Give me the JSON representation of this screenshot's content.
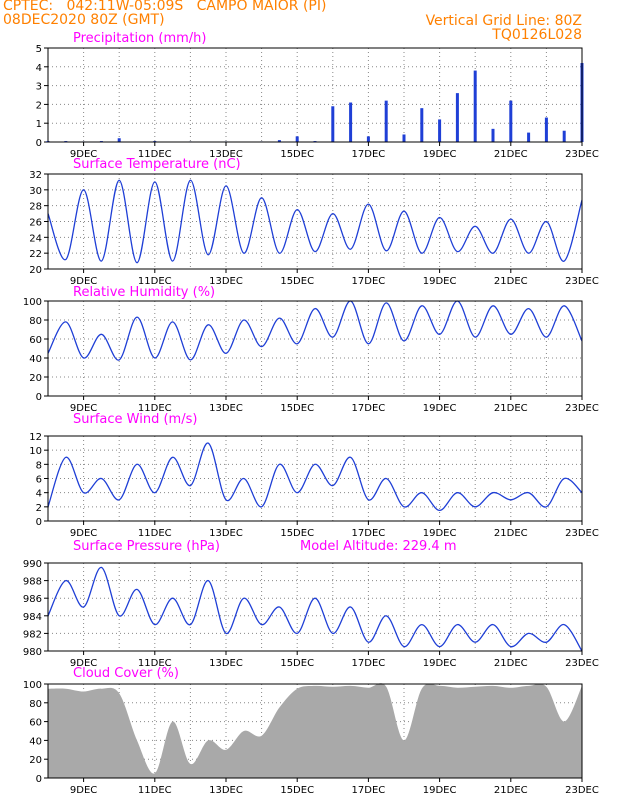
{
  "header": {
    "line1_left": "CPTEC:   042:11W-05:09S   CAMPO MAIOR (PI)",
    "line2_left": "08DEC2020 80Z (GMT)",
    "line1_right": "Vertical Grid Line: 80Z",
    "line2_right": "TQ0126L028"
  },
  "colors": {
    "header": "#ff8000",
    "title": "#ff00ff",
    "series": "#1f3fd6",
    "cloud": "#a9a9a9",
    "grid": "#888888"
  },
  "x_ticks": [
    "9DEC",
    "11DEC",
    "13DEC",
    "15DEC",
    "17DEC",
    "19DEC",
    "21DEC",
    "23DEC"
  ],
  "chart_data": [
    {
      "id": "precip",
      "type": "bar",
      "title": "Precipitation (mm/h)",
      "ylim": [
        0,
        5
      ],
      "yticks": [
        0,
        1,
        2,
        3,
        4,
        5
      ],
      "grid": true,
      "x": [
        0.0,
        0.5,
        1.0,
        1.5,
        2.0,
        2.5,
        3.0,
        3.5,
        4.0,
        4.5,
        5.0,
        5.5,
        6.0,
        6.5,
        7.0,
        7.5,
        8.0,
        8.5,
        9.0,
        9.5,
        10.0,
        10.5,
        11.0,
        11.5,
        12.0,
        12.5,
        13.0,
        13.5,
        14.0,
        14.5,
        15.0
      ],
      "values": [
        0.05,
        0.05,
        0.03,
        0.05,
        0.2,
        0.02,
        0.05,
        0.02,
        0.03,
        0.02,
        0.03,
        0.02,
        0.03,
        0.1,
        0.3,
        0.05,
        1.9,
        2.1,
        0.3,
        2.2,
        0.4,
        1.8,
        1.2,
        2.6,
        3.8,
        0.7,
        2.2,
        0.5,
        1.3,
        0.6,
        4.2
      ],
      "ticks": [
        "9DEC",
        "11DEC",
        "13DEC",
        "15DEC",
        "17DEC",
        "19DEC",
        "21DEC",
        "23DEC"
      ]
    },
    {
      "id": "temp",
      "type": "line",
      "title": "Surface Temperature (nC)",
      "ylim": [
        20,
        32
      ],
      "yticks": [
        20,
        22,
        24,
        26,
        28,
        30,
        32
      ],
      "grid": true,
      "x": [
        0.0,
        0.5,
        1.0,
        1.5,
        2.0,
        2.5,
        3.0,
        3.5,
        4.0,
        4.5,
        5.0,
        5.5,
        6.0,
        6.5,
        7.0,
        7.5,
        8.0,
        8.5,
        9.0,
        9.5,
        10.0,
        10.5,
        11.0,
        11.5,
        12.0,
        12.5,
        13.0,
        13.5,
        14.0,
        14.5,
        15.0
      ],
      "values": [
        27,
        21.2,
        30,
        21,
        31.2,
        20.8,
        31,
        21,
        31.2,
        21.8,
        30.5,
        22,
        29,
        22,
        27.5,
        22.2,
        27,
        22.5,
        28.2,
        22.3,
        27.3,
        22,
        26.5,
        22.2,
        25.4,
        22,
        26.3,
        22,
        26,
        21,
        28.7
      ],
      "ticks": [
        "9DEC",
        "11DEC",
        "13DEC",
        "15DEC",
        "17DEC",
        "19DEC",
        "21DEC",
        "23DEC"
      ]
    },
    {
      "id": "rh",
      "type": "line",
      "title": "Relative Humidity (%)",
      "ylim": [
        0,
        100
      ],
      "yticks": [
        0,
        20,
        40,
        60,
        80,
        100
      ],
      "grid": true,
      "x": [
        0.0,
        0.5,
        1.0,
        1.5,
        2.0,
        2.5,
        3.0,
        3.5,
        4.0,
        4.5,
        5.0,
        5.5,
        6.0,
        6.5,
        7.0,
        7.5,
        8.0,
        8.5,
        9.0,
        9.5,
        10.0,
        10.5,
        11.0,
        11.5,
        12.0,
        12.5,
        13.0,
        13.5,
        14.0,
        14.5,
        15.0
      ],
      "values": [
        45,
        78,
        40,
        65,
        38,
        83,
        40,
        78,
        38,
        75,
        45,
        80,
        52,
        82,
        55,
        92,
        62,
        100,
        55,
        98,
        58,
        95,
        65,
        100,
        62,
        95,
        65,
        92,
        62,
        95,
        58
      ],
      "ticks": [
        "9DEC",
        "11DEC",
        "13DEC",
        "15DEC",
        "17DEC",
        "19DEC",
        "21DEC",
        "23DEC"
      ]
    },
    {
      "id": "wind",
      "type": "line",
      "title": "Surface Wind (m/s)",
      "ylim": [
        0,
        12
      ],
      "yticks": [
        0,
        2,
        4,
        6,
        8,
        10,
        12
      ],
      "grid": true,
      "x": [
        0.0,
        0.5,
        1.0,
        1.5,
        2.0,
        2.5,
        3.0,
        3.5,
        4.0,
        4.5,
        5.0,
        5.5,
        6.0,
        6.5,
        7.0,
        7.5,
        8.0,
        8.5,
        9.0,
        9.5,
        10.0,
        10.5,
        11.0,
        11.5,
        12.0,
        12.5,
        13.0,
        13.5,
        14.0,
        14.5,
        15.0
      ],
      "values": [
        2,
        9,
        4,
        6,
        3,
        8,
        4,
        9,
        5,
        11,
        3,
        6,
        2,
        8,
        4,
        8,
        5,
        9,
        3,
        6,
        2,
        4,
        1.5,
        4,
        2,
        4,
        3,
        4,
        2,
        6,
        4
      ],
      "ticks": [
        "9DEC",
        "11DEC",
        "13DEC",
        "15DEC",
        "17DEC",
        "19DEC",
        "21DEC",
        "23DEC"
      ]
    },
    {
      "id": "pressure",
      "type": "line",
      "title": "Surface Pressure (hPa)",
      "extra_label": "Model Altitude: 229.4 m",
      "ylim": [
        980,
        990
      ],
      "yticks": [
        980,
        982,
        984,
        986,
        988,
        990
      ],
      "grid": true,
      "x": [
        0.0,
        0.5,
        1.0,
        1.5,
        2.0,
        2.5,
        3.0,
        3.5,
        4.0,
        4.5,
        5.0,
        5.5,
        6.0,
        6.5,
        7.0,
        7.5,
        8.0,
        8.5,
        9.0,
        9.5,
        10.0,
        10.5,
        11.0,
        11.5,
        12.0,
        12.5,
        13.0,
        13.5,
        14.0,
        14.5,
        15.0
      ],
      "values": [
        984,
        988,
        985,
        989.5,
        984,
        987,
        983,
        986,
        983,
        988,
        982,
        986,
        983,
        985,
        982,
        986,
        982,
        985,
        981,
        984,
        980.5,
        983,
        980.5,
        983,
        981,
        983,
        980.5,
        982,
        981,
        983,
        980
      ],
      "ticks": [
        "9DEC",
        "11DEC",
        "13DEC",
        "15DEC",
        "17DEC",
        "19DEC",
        "21DEC",
        "23DEC"
      ]
    },
    {
      "id": "cloud",
      "type": "area",
      "title": "Cloud Cover (%)",
      "ylim": [
        0,
        100
      ],
      "yticks": [
        0,
        20,
        40,
        60,
        80,
        100
      ],
      "grid": true,
      "x": [
        0.0,
        0.5,
        1.0,
        1.5,
        2.0,
        2.5,
        3.0,
        3.5,
        4.0,
        4.5,
        5.0,
        5.5,
        6.0,
        6.5,
        7.0,
        7.5,
        8.0,
        8.5,
        9.0,
        9.5,
        10.0,
        10.5,
        11.0,
        11.5,
        12.0,
        12.5,
        13.0,
        13.5,
        14.0,
        14.5,
        15.0
      ],
      "values": [
        95,
        95,
        92,
        95,
        90,
        40,
        5,
        60,
        15,
        40,
        30,
        50,
        45,
        75,
        95,
        98,
        97,
        98,
        96,
        97,
        40,
        95,
        98,
        96,
        97,
        98,
        96,
        98,
        97,
        60,
        98
      ],
      "ticks": [
        "9DEC",
        "11DEC",
        "13DEC",
        "15DEC",
        "17DEC",
        "19DEC",
        "21DEC",
        "23DEC"
      ]
    }
  ]
}
